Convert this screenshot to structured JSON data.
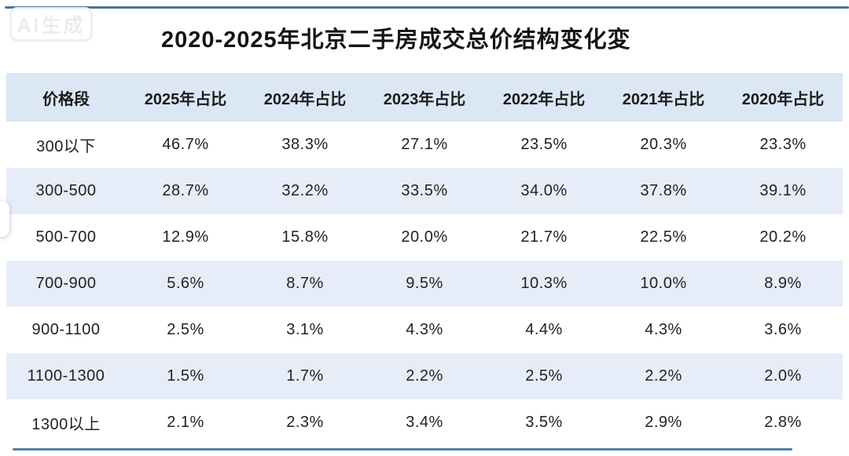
{
  "watermark": "AI生成",
  "title": "2020-2025年北京二手房成交总价结构变化変",
  "table": {
    "columns": [
      "价格段",
      "2025年占比",
      "2024年占比",
      "2023年占比",
      "2022年占比",
      "2021年占比",
      "2020年占比"
    ],
    "rows": [
      [
        "300以下",
        "46.7%",
        "38.3%",
        "27.1%",
        "23.5%",
        "20.3%",
        "23.3%"
      ],
      [
        "300-500",
        "28.7%",
        "32.2%",
        "33.5%",
        "34.0%",
        "37.8%",
        "39.1%"
      ],
      [
        "500-700",
        "12.9%",
        "15.8%",
        "20.0%",
        "21.7%",
        "22.5%",
        "20.2%"
      ],
      [
        "700-900",
        "5.6%",
        "8.7%",
        "9.5%",
        "10.3%",
        "10.0%",
        "8.9%"
      ],
      [
        "900-1100",
        "2.5%",
        "3.1%",
        "4.3%",
        "4.4%",
        "4.3%",
        "3.6%"
      ],
      [
        "1100-1300",
        "1.5%",
        "1.7%",
        "2.2%",
        "2.5%",
        "2.2%",
        "2.0%"
      ],
      [
        "1300以上",
        "2.1%",
        "2.3%",
        "3.4%",
        "3.5%",
        "2.9%",
        "2.8%"
      ]
    ]
  },
  "chart_data": {
    "type": "table",
    "title": "2020-2025年北京二手房成交总价结构变化変",
    "categories": [
      "300以下",
      "300-500",
      "500-700",
      "700-900",
      "900-1100",
      "1100-1300",
      "1300以上"
    ],
    "series": [
      {
        "name": "2025年占比",
        "values": [
          46.7,
          28.7,
          12.9,
          5.6,
          2.5,
          1.5,
          2.1
        ]
      },
      {
        "name": "2024年占比",
        "values": [
          38.3,
          32.2,
          15.8,
          8.7,
          3.1,
          1.7,
          2.3
        ]
      },
      {
        "name": "2023年占比",
        "values": [
          27.1,
          33.5,
          20.0,
          9.5,
          4.3,
          2.2,
          3.4
        ]
      },
      {
        "name": "2022年占比",
        "values": [
          23.5,
          34.0,
          21.7,
          10.3,
          4.4,
          2.5,
          3.5
        ]
      },
      {
        "name": "2021年占比",
        "values": [
          20.3,
          37.8,
          22.5,
          10.0,
          4.3,
          2.2,
          2.9
        ]
      },
      {
        "name": "2020年占比",
        "values": [
          23.3,
          39.1,
          20.2,
          8.9,
          3.6,
          2.0,
          2.8
        ]
      }
    ],
    "unit": "%",
    "xlabel": "价格段",
    "ylabel": "占比"
  },
  "colors": {
    "header_bg": "#dce7f5",
    "row_alt_bg": "#e6edf8",
    "row_bg": "#ffffff",
    "accent_line": "#4a7396",
    "text": "#222222"
  }
}
